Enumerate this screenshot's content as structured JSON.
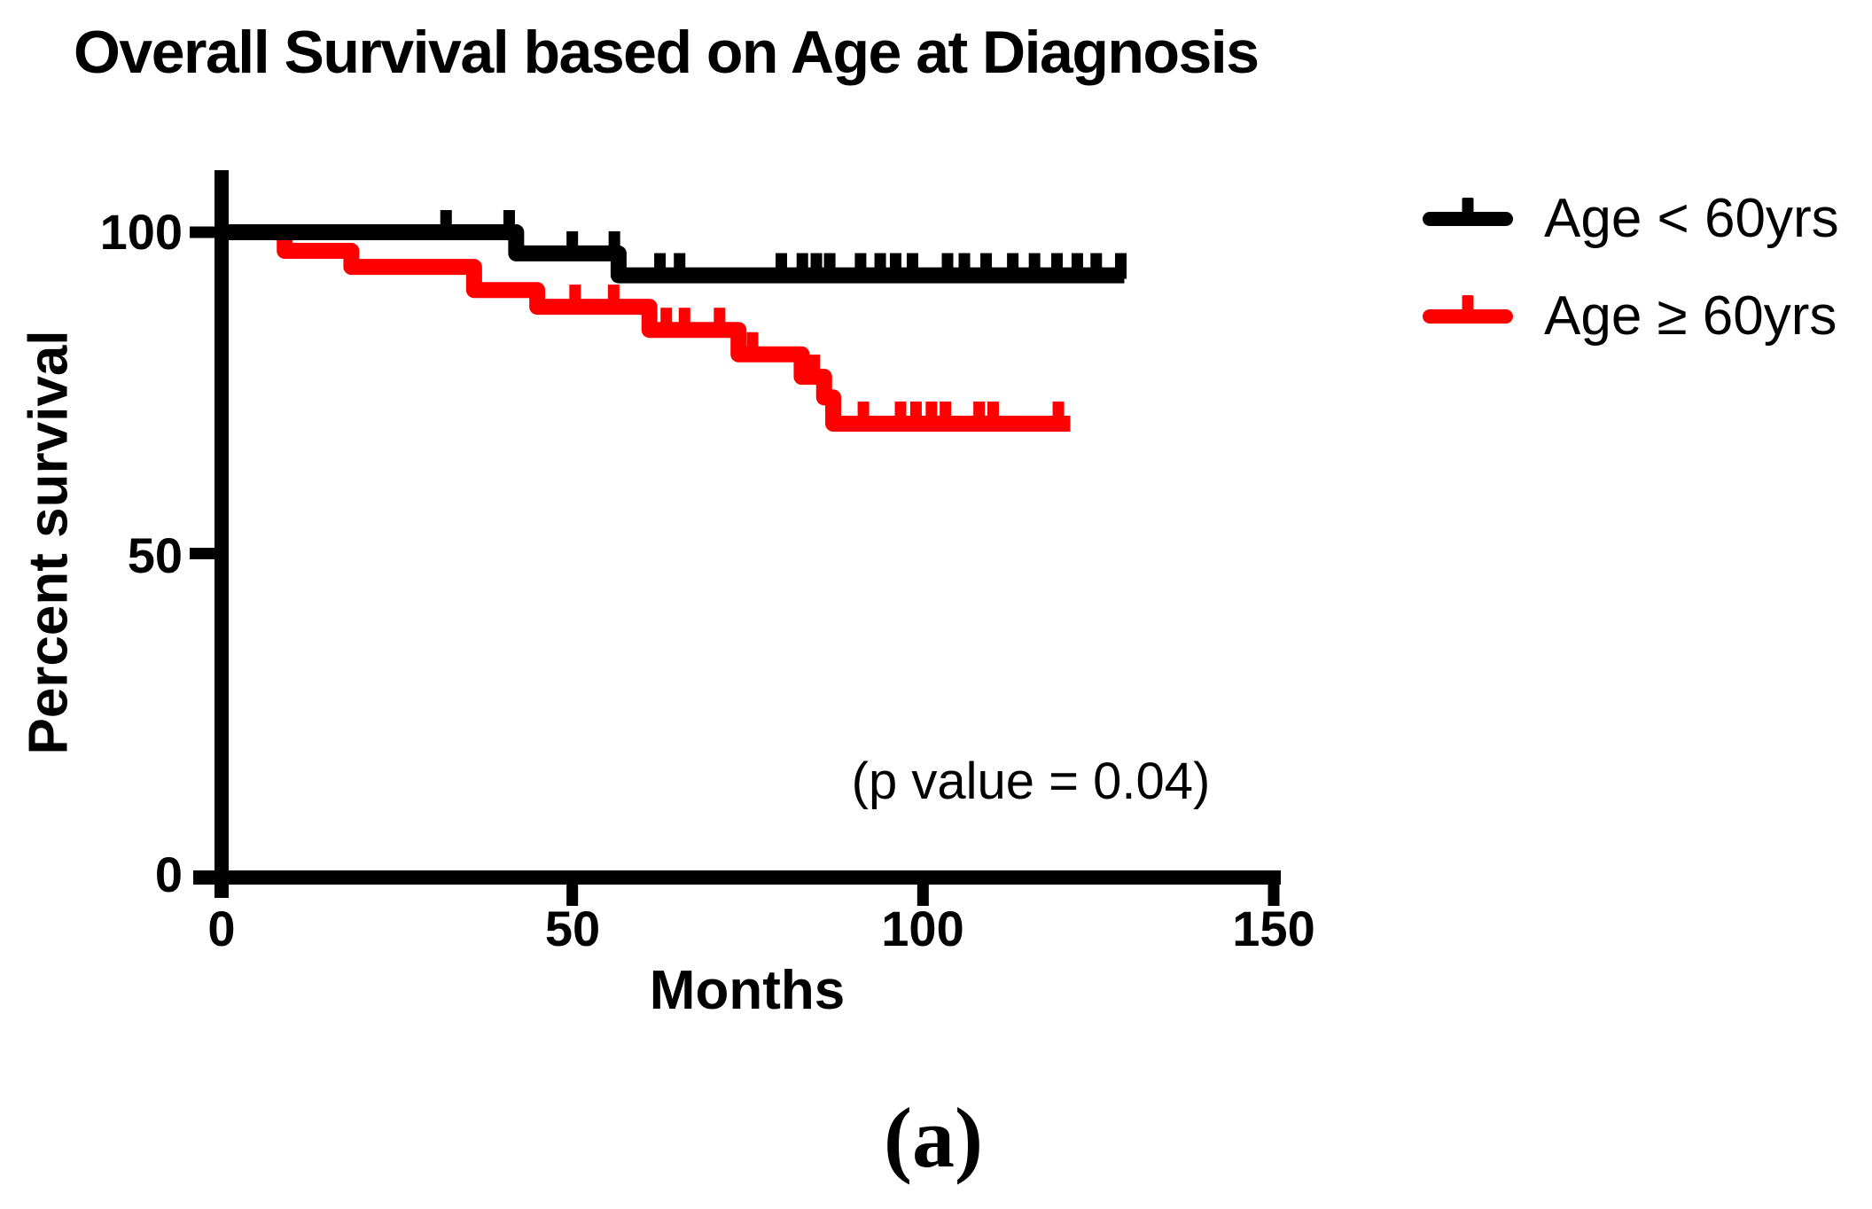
{
  "figure": {
    "title": "Overall Survival based on Age at Diagnosis",
    "annotation": "(p value = 0.04)",
    "panel_label": "(a)"
  },
  "chart_data": {
    "type": "line",
    "subtype": "kaplan_meier_step",
    "title": "Overall Survival based on Age at Diagnosis",
    "xlabel": "Months",
    "ylabel": "Percent survival",
    "xlim": [
      0,
      150
    ],
    "ylim": [
      0,
      100
    ],
    "x_ticks": [
      0,
      50,
      100,
      150
    ],
    "y_ticks": [
      100,
      50,
      0
    ],
    "grid": false,
    "legend_position": "top-right",
    "annotation": "(p value = 0.04)",
    "axis_color": "#000000",
    "series": [
      {
        "name": "Age < 60yrs",
        "color": "#000000",
        "steps": [
          [
            0,
            100
          ],
          [
            42,
            96.7
          ],
          [
            56.6,
            93.3
          ]
        ],
        "end_month": 128.7,
        "censor_marks": [
          32,
          41,
          50,
          56,
          62.5,
          65.3,
          79.8,
          82.8,
          84.8,
          86.7,
          91.1,
          93.9,
          96.1,
          98.5,
          103.5,
          105.9,
          109,
          112.8,
          115.9,
          119.1,
          122,
          124.7,
          128.2
        ]
      },
      {
        "name": "Age ≥ 60yrs",
        "color": "#ff0000",
        "steps": [
          [
            0,
            100
          ],
          [
            9,
            97.1
          ],
          [
            18.5,
            94.6
          ],
          [
            36,
            91
          ],
          [
            45,
            88.4
          ],
          [
            61,
            84.8
          ],
          [
            73.7,
            81
          ],
          [
            82.7,
            77.5
          ],
          [
            85.9,
            74.3
          ],
          [
            87.2,
            70.2
          ]
        ],
        "end_month": 121,
        "censor_marks": [
          50.4,
          55.9,
          63.4,
          66,
          71,
          75.7,
          84.5,
          91.5,
          96.8,
          99,
          101.2,
          103.2,
          108,
          110,
          119.3
        ]
      }
    ]
  }
}
